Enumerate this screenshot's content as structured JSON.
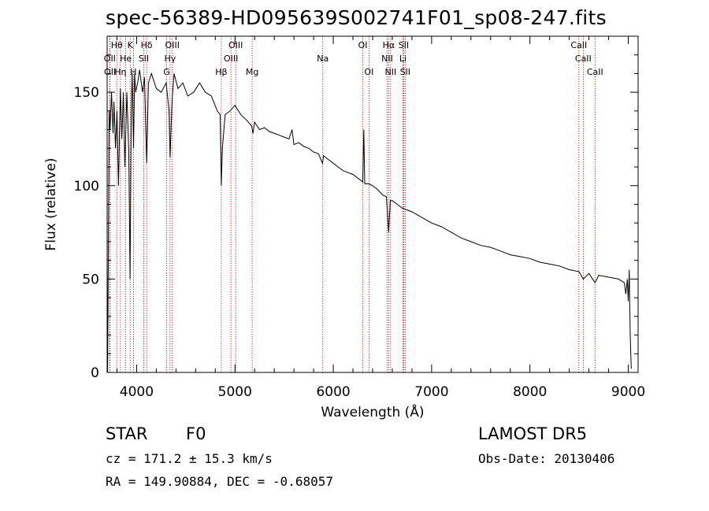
{
  "header": {
    "title": "spec-56389-HD095639S002741F01_sp08-247.fits"
  },
  "info": {
    "object_class": "STAR",
    "object_subclass": "F0",
    "survey": "LAMOST DR5",
    "cz_line": "cz = 171.2 ± 15.3 km/s",
    "obs_date": "Obs-Date: 20130406",
    "radec_line": "RA = 149.90884, DEC =  -0.68057"
  },
  "colors": {
    "spectrum": "#000000",
    "line_markers": "#c00000",
    "axes": "#000000"
  },
  "chart_data": {
    "type": "line",
    "xlabel": "Wavelength (Å)",
    "ylabel": "Flux (relative)",
    "xlim": [
      3700,
      9100
    ],
    "ylim": [
      0,
      180
    ],
    "xticks": [
      4000,
      5000,
      6000,
      7000,
      8000,
      9000
    ],
    "yticks": [
      0,
      50,
      100,
      150
    ],
    "grid": false,
    "series": [
      {
        "x": [
          3700,
          3705,
          3710,
          3720,
          3730,
          3745,
          3760,
          3770,
          3785,
          3800,
          3815,
          3835,
          3850,
          3865,
          3880,
          3889,
          3900,
          3920,
          3933,
          3945,
          3955,
          3968,
          3980,
          3990,
          4010,
          4030,
          4060,
          4080,
          4102,
          4120,
          4150,
          4200,
          4250,
          4300,
          4330,
          4340,
          4350,
          4360,
          4380,
          4420,
          4470,
          4520,
          4580,
          4640,
          4700,
          4760,
          4820,
          4850,
          4861,
          4872,
          4900,
          4950,
          5000,
          5060,
          5120,
          5170,
          5183,
          5200,
          5250,
          5300,
          5350,
          5400,
          5450,
          5500,
          5550,
          5580,
          5600,
          5650,
          5700,
          5750,
          5800,
          5850,
          5890,
          5896,
          5900,
          5950,
          6000,
          6050,
          6100,
          6150,
          6200,
          6250,
          6300,
          6310,
          6320,
          6360,
          6400,
          6450,
          6500,
          6540,
          6563,
          6580,
          6600,
          6650,
          6700,
          6750,
          6800,
          6900,
          7000,
          7100,
          7200,
          7300,
          7400,
          7500,
          7600,
          7700,
          7800,
          7900,
          8000,
          8100,
          8200,
          8300,
          8400,
          8498,
          8542,
          8600,
          8662,
          8700,
          8800,
          8900,
          8960,
          8975,
          8990,
          9000,
          9010,
          9020,
          9030
        ],
        "y": [
          60,
          0,
          40,
          140,
          130,
          150,
          128,
          145,
          120,
          140,
          100,
          152,
          125,
          150,
          110,
          128,
          150,
          118,
          50,
          140,
          160,
          120,
          160,
          150,
          155,
          162,
          150,
          158,
          112,
          155,
          160,
          152,
          150,
          155,
          140,
          115,
          130,
          145,
          160,
          152,
          155,
          148,
          150,
          155,
          150,
          148,
          140,
          138,
          100,
          120,
          138,
          140,
          143,
          138,
          135,
          132,
          128,
          134,
          130,
          131,
          129,
          128,
          127,
          126,
          125,
          130,
          122,
          123,
          121,
          120,
          118,
          117,
          112,
          114,
          116,
          114,
          112,
          110,
          108,
          107,
          106,
          104,
          102,
          130,
          101,
          101,
          100,
          98,
          95,
          94,
          75,
          92,
          92,
          90,
          88,
          87,
          86,
          83,
          80,
          78,
          75,
          72,
          70,
          68,
          67,
          65,
          63,
          62,
          61,
          59,
          58,
          57,
          55,
          54,
          50,
          53,
          48,
          52,
          51,
          50,
          48,
          42,
          50,
          38,
          55,
          20,
          2
        ]
      }
    ],
    "line_markers": [
      {
        "label": "Hθ",
        "x": 3798,
        "row": 0
      },
      {
        "label": "K",
        "x": 3934,
        "row": 0
      },
      {
        "label": "Hδ",
        "x": 4102,
        "row": 0
      },
      {
        "label": "OIII",
        "x": 4363,
        "row": 0
      },
      {
        "label": "OIII",
        "x": 5007,
        "row": 0
      },
      {
        "label": "OI",
        "x": 6300,
        "row": 0
      },
      {
        "label": "Hα",
        "x": 6563,
        "row": 0
      },
      {
        "label": "SII",
        "x": 6716,
        "row": 0
      },
      {
        "label": "CaII",
        "x": 8498,
        "row": 0
      },
      {
        "label": "OII",
        "x": 3727,
        "row": 1
      },
      {
        "label": "He",
        "x": 3889,
        "row": 1
      },
      {
        "label": "SII",
        "x": 4072,
        "row": 1
      },
      {
        "label": "Hγ",
        "x": 4340,
        "row": 1
      },
      {
        "label": "OIII",
        "x": 4959,
        "row": 1
      },
      {
        "label": "NII",
        "x": 6548,
        "row": 1
      },
      {
        "label": "Li",
        "x": 6708,
        "row": 1
      },
      {
        "label": "CaII",
        "x": 8542,
        "row": 1
      },
      {
        "label": "OII",
        "x": 3729,
        "row": 2
      },
      {
        "label": "Hη",
        "x": 3835,
        "row": 2
      },
      {
        "label": "H",
        "x": 3968,
        "row": 2
      },
      {
        "label": "G",
        "x": 4305,
        "row": 2
      },
      {
        "label": "Hβ",
        "x": 4861,
        "row": 2
      },
      {
        "label": "Mg",
        "x": 5175,
        "row": 2
      },
      {
        "label": "Na",
        "x": 5893,
        "row": 1
      },
      {
        "label": "OI",
        "x": 6363,
        "row": 2
      },
      {
        "label": "NII",
        "x": 6583,
        "row": 2
      },
      {
        "label": "SII",
        "x": 6731,
        "row": 2
      },
      {
        "label": "CaII",
        "x": 8662,
        "row": 2
      }
    ]
  }
}
